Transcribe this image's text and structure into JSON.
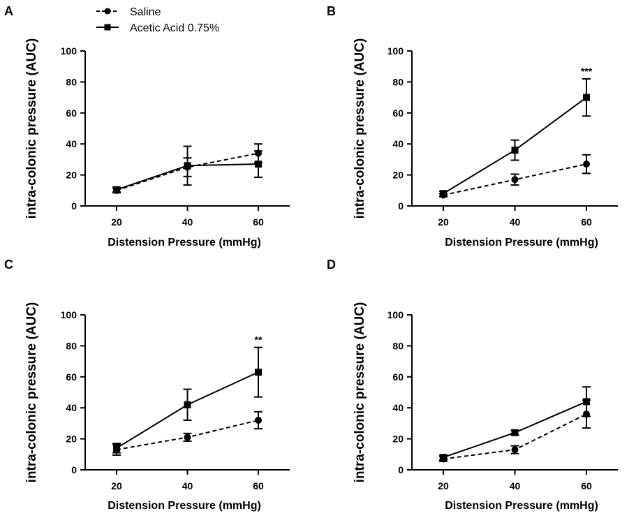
{
  "legend": {
    "saline": "Saline",
    "acetic": "Acetic Acid 0.75%"
  },
  "chart_data": [
    {
      "panel": "A",
      "type": "line",
      "xlabel": "Distension Pressure (mmHg)",
      "ylabel": "intra-colonic pressure (AUC)",
      "x": [
        20,
        40,
        60
      ],
      "ylim": [
        0,
        100
      ],
      "yticks": [
        0,
        20,
        40,
        60,
        80,
        100
      ],
      "series": [
        {
          "name": "Saline",
          "values": [
            10,
            25,
            34
          ],
          "errors": [
            1.5,
            6,
            6
          ]
        },
        {
          "name": "Acetic Acid 0.75%",
          "values": [
            10.5,
            26,
            27
          ],
          "errors": [
            1.5,
            12.5,
            8.5
          ]
        }
      ],
      "annotations": []
    },
    {
      "panel": "B",
      "type": "line",
      "xlabel": "Distension Pressure (mmHg)",
      "ylabel": "intra-colonic pressure (AUC)",
      "x": [
        20,
        40,
        60
      ],
      "ylim": [
        0,
        100
      ],
      "yticks": [
        0,
        20,
        40,
        60,
        80,
        100
      ],
      "series": [
        {
          "name": "Saline",
          "values": [
            7,
            17,
            27
          ],
          "errors": [
            1,
            3.5,
            6
          ]
        },
        {
          "name": "Acetic Acid 0.75%",
          "values": [
            8,
            36,
            70
          ],
          "errors": [
            1.5,
            6.5,
            12
          ]
        }
      ],
      "annotations": [
        {
          "x": 60,
          "text": "***"
        }
      ]
    },
    {
      "panel": "C",
      "type": "line",
      "xlabel": "Distension Pressure (mmHg)",
      "ylabel": "intra-colonic pressure (AUC)",
      "x": [
        20,
        40,
        60
      ],
      "ylim": [
        0,
        100
      ],
      "yticks": [
        0,
        20,
        40,
        60,
        80,
        100
      ],
      "series": [
        {
          "name": "Saline",
          "values": [
            13,
            21,
            32
          ],
          "errors": [
            3.5,
            2.5,
            5.5
          ]
        },
        {
          "name": "Acetic Acid 0.75%",
          "values": [
            14,
            42,
            63
          ],
          "errors": [
            3,
            10,
            16
          ]
        }
      ],
      "annotations": [
        {
          "x": 60,
          "text": "**"
        }
      ]
    },
    {
      "panel": "D",
      "type": "line",
      "xlabel": "Distension Pressure (mmHg)",
      "ylabel": "intra-colonic pressure (AUC)",
      "x": [
        20,
        40,
        60
      ],
      "ylim": [
        0,
        100
      ],
      "yticks": [
        0,
        20,
        40,
        60,
        80,
        100
      ],
      "series": [
        {
          "name": "Saline",
          "values": [
            7,
            13,
            36
          ],
          "errors": [
            1.5,
            2.5,
            9
          ]
        },
        {
          "name": "Acetic Acid 0.75%",
          "values": [
            8,
            24,
            44
          ],
          "errors": [
            1.5,
            1.5,
            9.5
          ]
        }
      ],
      "annotations": []
    }
  ]
}
